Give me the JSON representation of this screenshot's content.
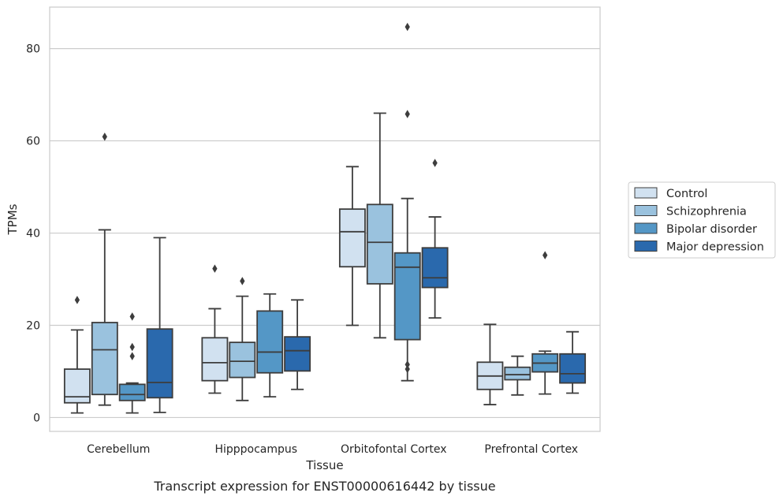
{
  "chart_data": {
    "type": "box",
    "caption": "Transcript expression for ENST00000616442 by tissue",
    "xlabel": "Tissue",
    "ylabel": "TPMs",
    "ylim": [
      -3,
      89
    ],
    "yticks": [
      0,
      20,
      40,
      60,
      80
    ],
    "grid": "horizontal",
    "legend_position": "right",
    "categories": [
      "Cerebellum",
      "Hipppocampus",
      "Orbitofontal Cortex",
      "Prefrontal Cortex"
    ],
    "series": [
      {
        "name": "Control",
        "color": "#d1e1f0",
        "boxes": [
          {
            "whislo": 1.0,
            "q1": 3.2,
            "med": 4.5,
            "q3": 10.5,
            "whishi": 19.0,
            "fliers": [
              25.5
            ]
          },
          {
            "whislo": 5.3,
            "q1": 8.0,
            "med": 11.9,
            "q3": 17.3,
            "whishi": 23.6,
            "fliers": [
              32.3
            ]
          },
          {
            "whislo": 20.0,
            "q1": 32.7,
            "med": 40.3,
            "q3": 45.2,
            "whishi": 54.4,
            "fliers": []
          },
          {
            "whislo": 2.8,
            "q1": 6.1,
            "med": 9.0,
            "q3": 12.0,
            "whishi": 20.2,
            "fliers": []
          }
        ]
      },
      {
        "name": "Schizophrenia",
        "color": "#9ac2de",
        "boxes": [
          {
            "whislo": 2.7,
            "q1": 5.0,
            "med": 14.7,
            "q3": 20.6,
            "whishi": 40.7,
            "fliers": [
              60.9
            ]
          },
          {
            "whislo": 3.7,
            "q1": 8.7,
            "med": 12.2,
            "q3": 16.3,
            "whishi": 26.3,
            "fliers": [
              29.6
            ]
          },
          {
            "whislo": 17.3,
            "q1": 29.0,
            "med": 38.0,
            "q3": 46.2,
            "whishi": 66.0,
            "fliers": []
          },
          {
            "whislo": 4.9,
            "q1": 8.2,
            "med": 9.3,
            "q3": 10.9,
            "whishi": 13.3,
            "fliers": []
          }
        ]
      },
      {
        "name": "Bipolar disorder",
        "color": "#5497c6",
        "boxes": [
          {
            "whislo": 1.0,
            "q1": 3.7,
            "med": 5.0,
            "q3": 7.2,
            "whishi": 7.5,
            "fliers": [
              13.3,
              15.3,
              21.9
            ]
          },
          {
            "whislo": 4.5,
            "q1": 9.7,
            "med": 14.2,
            "q3": 23.1,
            "whishi": 26.8,
            "fliers": []
          },
          {
            "whislo": 8.0,
            "q1": 16.9,
            "med": 32.6,
            "q3": 35.7,
            "whishi": 47.5,
            "fliers": [
              10.5,
              11.5,
              65.8,
              84.7
            ]
          },
          {
            "whislo": 5.1,
            "q1": 9.9,
            "med": 11.8,
            "q3": 13.8,
            "whishi": 14.4,
            "fliers": [
              35.2
            ]
          }
        ]
      },
      {
        "name": "Major depression",
        "color": "#2a69ad",
        "boxes": [
          {
            "whislo": 1.1,
            "q1": 4.3,
            "med": 7.6,
            "q3": 19.2,
            "whishi": 39.0,
            "fliers": []
          },
          {
            "whislo": 6.1,
            "q1": 10.1,
            "med": 14.5,
            "q3": 17.5,
            "whishi": 25.5,
            "fliers": []
          },
          {
            "whislo": 21.6,
            "q1": 28.2,
            "med": 30.3,
            "q3": 36.8,
            "whishi": 43.5,
            "fliers": [
              55.2
            ]
          },
          {
            "whislo": 5.3,
            "q1": 7.5,
            "med": 9.5,
            "q3": 13.8,
            "whishi": 18.6,
            "fliers": []
          }
        ]
      }
    ]
  }
}
